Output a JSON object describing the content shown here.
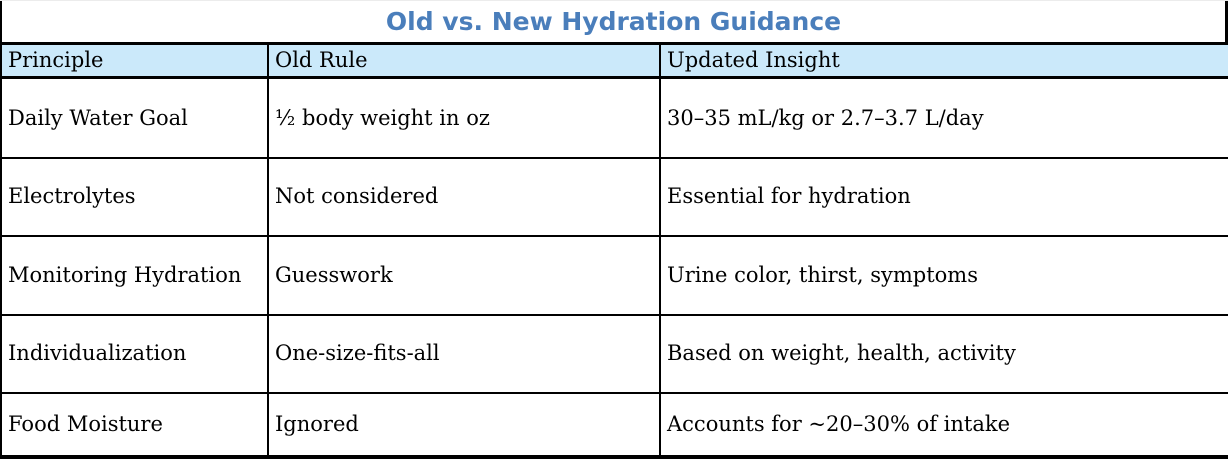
{
  "title": "Old vs. New Hydration Guidance",
  "colors": {
    "title_text": "#4a7ebb",
    "header_background": "#cbe9fa",
    "border": "#000000",
    "body_text": "#000000"
  },
  "table": {
    "columns": [
      "Principle",
      "Old Rule",
      "Updated Insight"
    ],
    "rows": [
      [
        "Daily Water Goal",
        "½ body weight in oz",
        "30–35 mL/kg or 2.7–3.7 L/day"
      ],
      [
        "Electrolytes",
        "Not considered",
        "Essential for hydration"
      ],
      [
        "Monitoring Hydration",
        "Guesswork",
        "Urine color, thirst, symptoms"
      ],
      [
        "Individualization",
        "One-size-fits-all",
        "Based on weight, health, activity"
      ],
      [
        "Food Moisture",
        "Ignored",
        "Accounts for ~20–30% of intake"
      ]
    ]
  }
}
